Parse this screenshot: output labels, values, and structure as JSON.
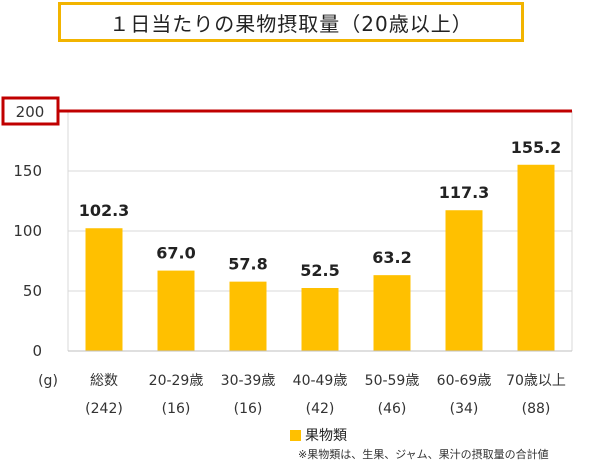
{
  "chart_data": {
    "type": "bar",
    "title": "１日当たりの果物摂取量（20歳以上）",
    "unit": "(g)",
    "categories": [
      "総数",
      "20-29歳",
      "30-39歳",
      "40-49歳",
      "50-59歳",
      "60-69歳",
      "70歳以上"
    ],
    "counts": [
      "(242)",
      "(16)",
      "(16)",
      "(42)",
      "(46)",
      "(34)",
      "(88)"
    ],
    "series": [
      {
        "name": "果物類",
        "values": [
          102.3,
          67.0,
          57.8,
          52.5,
          63.2,
          117.3,
          155.2
        ]
      }
    ],
    "value_labels": [
      "102.3",
      "67.0",
      "57.8",
      "52.5",
      "63.2",
      "117.3",
      "155.2"
    ],
    "yticks": [
      0,
      50,
      100,
      150,
      200
    ],
    "ylim": [
      0,
      200
    ],
    "reference_line": {
      "value": 200,
      "label": "200",
      "color": "#c00000"
    },
    "bar_color": "#ffc000",
    "grid": true,
    "legend_position": "bottom",
    "note": "※果物類は、生果、ジャム、果汁の摂取量の合計値"
  }
}
